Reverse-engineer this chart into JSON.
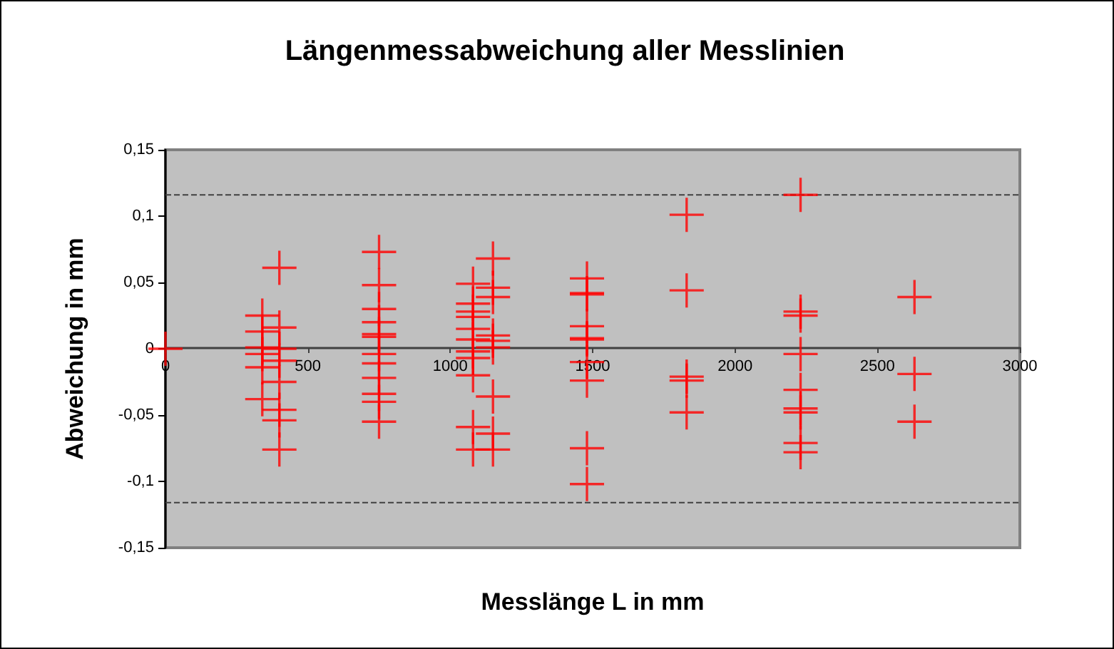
{
  "chart_data": {
    "type": "scatter",
    "title": "Längenmessabweichung aller Messlinien",
    "xlabel": "Messlänge L in mm",
    "ylabel": "Abweichung in mm",
    "x": [
      0,
      340,
      340,
      340,
      340,
      340,
      340,
      400,
      400,
      400,
      400,
      400,
      400,
      400,
      400,
      750,
      750,
      750,
      750,
      750,
      750,
      750,
      750,
      750,
      750,
      750,
      750,
      1080,
      1080,
      1080,
      1080,
      1080,
      1080,
      1080,
      1080,
      1080,
      1080,
      1080,
      1150,
      1150,
      1150,
      1150,
      1150,
      1150,
      1150,
      1150,
      1150,
      1480,
      1480,
      1480,
      1480,
      1480,
      1480,
      1480,
      1480,
      1480,
      1480,
      1830,
      1830,
      1830,
      1830,
      1830,
      2230,
      2230,
      2230,
      2230,
      2230,
      2230,
      2230,
      2230,
      2230,
      2630,
      2630,
      2630
    ],
    "values": [
      0,
      0.025,
      0.013,
      0.001,
      -0.004,
      -0.014,
      -0.038,
      0.061,
      0.016,
      0,
      -0.009,
      -0.025,
      -0.046,
      -0.054,
      -0.076,
      0.073,
      0.048,
      0.03,
      0.02,
      0.011,
      0.009,
      -0.004,
      -0.011,
      -0.022,
      -0.034,
      -0.04,
      -0.055,
      0.049,
      0.034,
      0.028,
      0.024,
      0.015,
      0.007,
      -0.002,
      -0.007,
      -0.02,
      -0.059,
      -0.076,
      0.068,
      0.046,
      0.039,
      0.01,
      0.006,
      0.001,
      -0.036,
      -0.064,
      -0.076,
      0.053,
      0.042,
      0.041,
      0.017,
      0.008,
      0.007,
      -0.01,
      -0.024,
      -0.075,
      -0.102,
      0.101,
      0.044,
      -0.021,
      -0.024,
      -0.048,
      0.116,
      0.028,
      0.025,
      -0.004,
      -0.031,
      -0.045,
      -0.048,
      -0.071,
      -0.078,
      0.039,
      -0.019,
      -0.055
    ],
    "color": "#ff0000",
    "marker": "cross",
    "xlim": [
      0,
      3000
    ],
    "xticks": [
      0,
      500,
      1000,
      1500,
      2000,
      2500,
      3000
    ],
    "ylim": [
      -0.15,
      0.15
    ],
    "yticks": [
      {
        "value": -0.15,
        "label": "-0,15"
      },
      {
        "value": -0.1,
        "label": "-0,1"
      },
      {
        "value": -0.05,
        "label": "-0,05"
      },
      0,
      {
        "value": 0.05,
        "label": "0,05"
      },
      {
        "value": 0.1,
        "label": "0,1"
      },
      {
        "value": 0.15,
        "label": "0,15"
      }
    ],
    "ref_lines": [
      {
        "axis": "y",
        "value": 0.116,
        "color": "#404040",
        "line_style": "dashed"
      },
      {
        "axis": "y",
        "value": -0.116,
        "color": "#404040",
        "line_style": "dashed"
      }
    ],
    "grid": false
  }
}
